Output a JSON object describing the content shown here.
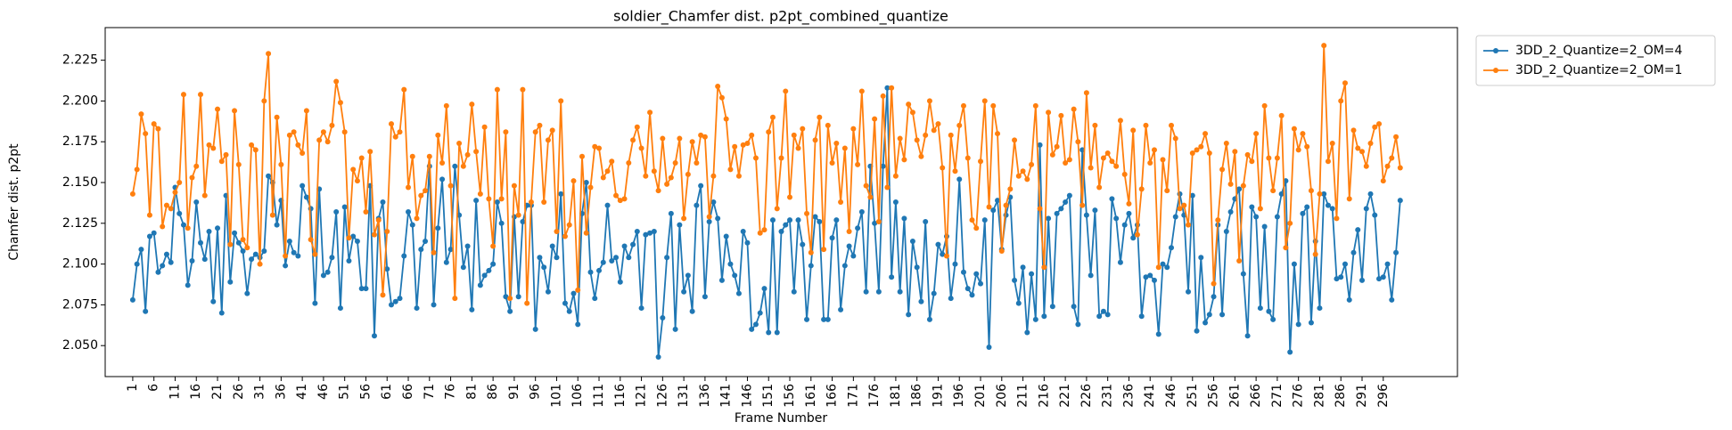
{
  "chart_data": {
    "type": "line",
    "title": "soldier_Chamfer dist. p2pt_combined_quantize",
    "xlabel": "Frame Number",
    "ylabel": "Chamfer dist. p2pt",
    "legend": "outside-upper-right",
    "xlim": [
      -5.5,
      313.5
    ],
    "ylim": [
      2.031,
      2.245
    ],
    "xticks": [
      1,
      6,
      11,
      16,
      21,
      26,
      31,
      36,
      41,
      46,
      51,
      56,
      61,
      66,
      71,
      76,
      81,
      86,
      91,
      96,
      101,
      106,
      111,
      116,
      121,
      126,
      131,
      136,
      141,
      146,
      151,
      156,
      161,
      166,
      171,
      176,
      181,
      186,
      191,
      196,
      201,
      206,
      211,
      216,
      221,
      226,
      231,
      236,
      241,
      246,
      251,
      256,
      261,
      266,
      271,
      276,
      281,
      286,
      291,
      296
    ],
    "yticks": [
      {
        "value": 2.05,
        "label": "2.050"
      },
      2.075,
      {
        "value": 2.1,
        "label": "2.100"
      },
      2.125,
      {
        "value": 2.15,
        "label": "2.150"
      },
      2.175,
      {
        "value": 2.2,
        "label": "2.200"
      },
      2.225
    ],
    "x": [
      1,
      2,
      3,
      4,
      5,
      6,
      7,
      8,
      9,
      10,
      11,
      12,
      13,
      14,
      15,
      16,
      17,
      18,
      19,
      20,
      21,
      22,
      23,
      24,
      25,
      26,
      27,
      28,
      29,
      30,
      31,
      32,
      33,
      34,
      35,
      36,
      37,
      38,
      39,
      40,
      41,
      42,
      43,
      44,
      45,
      46,
      47,
      48,
      49,
      50,
      51,
      52,
      53,
      54,
      55,
      56,
      57,
      58,
      59,
      60,
      61,
      62,
      63,
      64,
      65,
      66,
      67,
      68,
      69,
      70,
      71,
      72,
      73,
      74,
      75,
      76,
      77,
      78,
      79,
      80,
      81,
      82,
      83,
      84,
      85,
      86,
      87,
      88,
      89,
      90,
      91,
      92,
      93,
      94,
      95,
      96,
      97,
      98,
      99,
      100,
      101,
      102,
      103,
      104,
      105,
      106,
      107,
      108,
      109,
      110,
      111,
      112,
      113,
      114,
      115,
      116,
      117,
      118,
      119,
      120,
      121,
      122,
      123,
      124,
      125,
      126,
      127,
      128,
      129,
      130,
      131,
      132,
      133,
      134,
      135,
      136,
      137,
      138,
      139,
      140,
      141,
      142,
      143,
      144,
      145,
      146,
      147,
      148,
      149,
      150,
      151,
      152,
      153,
      154,
      155,
      156,
      157,
      158,
      159,
      160,
      161,
      162,
      163,
      164,
      165,
      166,
      167,
      168,
      169,
      170,
      171,
      172,
      173,
      174,
      175,
      176,
      177,
      178,
      179,
      180,
      181,
      182,
      183,
      184,
      185,
      186,
      187,
      188,
      189,
      190,
      191,
      192,
      193,
      194,
      195,
      196,
      197,
      198,
      199,
      200,
      201,
      202,
      203,
      204,
      205,
      206,
      207,
      208,
      209,
      210,
      211,
      212,
      213,
      214,
      215,
      216,
      217,
      218,
      219,
      220,
      221,
      222,
      223,
      224,
      225,
      226,
      227,
      228,
      229,
      230,
      231,
      232,
      233,
      234,
      235,
      236,
      237,
      238,
      239,
      240,
      241,
      242,
      243,
      244,
      245,
      246,
      247,
      248,
      249,
      250,
      251,
      252,
      253,
      254,
      255,
      256,
      257,
      258,
      259,
      260,
      261,
      262,
      263,
      264,
      265,
      266,
      267,
      268,
      269,
      270,
      271,
      272,
      273,
      274,
      275,
      276,
      277,
      278,
      279,
      280,
      281,
      282,
      283,
      284,
      285,
      286,
      287,
      288,
      289,
      290,
      291,
      292,
      293,
      294,
      295,
      296,
      297,
      298,
      299,
      300
    ],
    "series": [
      {
        "name": "3DD_2_Quantize=2_OM=4",
        "color": "#1f77b4",
        "values": [
          2.078,
          2.1,
          2.109,
          2.071,
          2.117,
          2.119,
          2.095,
          2.099,
          2.106,
          2.101,
          2.147,
          2.131,
          2.124,
          2.087,
          2.102,
          2.138,
          2.113,
          2.103,
          2.12,
          2.077,
          2.122,
          2.07,
          2.142,
          2.089,
          2.119,
          2.113,
          2.108,
          2.082,
          2.103,
          2.106,
          2.104,
          2.108,
          2.154,
          2.15,
          2.124,
          2.139,
          2.099,
          2.114,
          2.107,
          2.105,
          2.148,
          2.141,
          2.134,
          2.076,
          2.146,
          2.093,
          2.095,
          2.104,
          2.132,
          2.073,
          2.135,
          2.102,
          2.117,
          2.114,
          2.085,
          2.085,
          2.148,
          2.056,
          2.128,
          2.138,
          2.097,
          2.075,
          2.077,
          2.079,
          2.105,
          2.132,
          2.124,
          2.073,
          2.109,
          2.114,
          2.16,
          2.075,
          2.122,
          2.152,
          2.101,
          2.109,
          2.16,
          2.13,
          2.098,
          2.111,
          2.072,
          2.139,
          2.087,
          2.093,
          2.096,
          2.1,
          2.138,
          2.125,
          2.08,
          2.071,
          2.129,
          2.08,
          2.126,
          2.136,
          2.136,
          2.06,
          2.104,
          2.098,
          2.083,
          2.111,
          2.104,
          2.143,
          2.076,
          2.071,
          2.082,
          2.063,
          2.131,
          2.15,
          2.095,
          2.079,
          2.096,
          2.101,
          2.136,
          2.102,
          2.104,
          2.089,
          2.111,
          2.104,
          2.112,
          2.12,
          2.073,
          2.118,
          2.119,
          2.12,
          2.043,
          2.067,
          2.104,
          2.131,
          2.06,
          2.124,
          2.083,
          2.093,
          2.071,
          2.136,
          2.148,
          2.08,
          2.126,
          2.138,
          2.128,
          2.09,
          2.117,
          2.1,
          2.093,
          2.082,
          2.12,
          2.113,
          2.06,
          2.063,
          2.07,
          2.085,
          2.058,
          2.127,
          2.058,
          2.12,
          2.124,
          2.127,
          2.083,
          2.127,
          2.112,
          2.066,
          2.099,
          2.129,
          2.126,
          2.066,
          2.066,
          2.116,
          2.127,
          2.072,
          2.099,
          2.111,
          2.105,
          2.122,
          2.132,
          2.083,
          2.16,
          2.125,
          2.083,
          2.16,
          2.208,
          2.092,
          2.138,
          2.083,
          2.128,
          2.069,
          2.114,
          2.098,
          2.077,
          2.126,
          2.066,
          2.082,
          2.112,
          2.106,
          2.117,
          2.079,
          2.1,
          2.152,
          2.095,
          2.085,
          2.081,
          2.094,
          2.088,
          2.127,
          2.049,
          2.133,
          2.139,
          2.109,
          2.13,
          2.141,
          2.09,
          2.076,
          2.098,
          2.058,
          2.094,
          2.066,
          2.173,
          2.068,
          2.128,
          2.074,
          2.131,
          2.134,
          2.138,
          2.142,
          2.074,
          2.063,
          2.17,
          2.13,
          2.093,
          2.133,
          2.068,
          2.071,
          2.069,
          2.14,
          2.128,
          2.101,
          2.124,
          2.131,
          2.116,
          2.124,
          2.068,
          2.092,
          2.093,
          2.09,
          2.057,
          2.1,
          2.098,
          2.11,
          2.129,
          2.143,
          2.13,
          2.083,
          2.142,
          2.059,
          2.104,
          2.064,
          2.069,
          2.08,
          2.124,
          2.069,
          2.12,
          2.132,
          2.14,
          2.146,
          2.094,
          2.056,
          2.135,
          2.129,
          2.073,
          2.123,
          2.071,
          2.066,
          2.129,
          2.143,
          2.151,
          2.046,
          2.1,
          2.063,
          2.131,
          2.135,
          2.064,
          2.114,
          2.073,
          2.143,
          2.136,
          2.134,
          2.091,
          2.092,
          2.1,
          2.078,
          2.107,
          2.121,
          2.09,
          2.134,
          2.143,
          2.13,
          2.091,
          2.092,
          2.1,
          2.078,
          2.107,
          2.139
        ]
      },
      {
        "name": "3DD_2_Quantize=2_OM=1",
        "color": "#ff7f0e",
        "values": [
          2.143,
          2.158,
          2.192,
          2.18,
          2.13,
          2.186,
          2.183,
          2.123,
          2.136,
          2.134,
          2.144,
          2.15,
          2.204,
          2.122,
          2.153,
          2.16,
          2.204,
          2.142,
          2.173,
          2.171,
          2.195,
          2.163,
          2.167,
          2.112,
          2.194,
          2.161,
          2.115,
          2.11,
          2.173,
          2.17,
          2.1,
          2.2,
          2.229,
          2.13,
          2.19,
          2.161,
          2.105,
          2.179,
          2.181,
          2.173,
          2.168,
          2.194,
          2.115,
          2.106,
          2.176,
          2.181,
          2.175,
          2.185,
          2.212,
          2.199,
          2.181,
          2.116,
          2.158,
          2.151,
          2.165,
          2.132,
          2.169,
          2.118,
          2.127,
          2.081,
          2.12,
          2.186,
          2.178,
          2.181,
          2.207,
          2.147,
          2.166,
          2.128,
          2.142,
          2.145,
          2.166,
          2.107,
          2.179,
          2.162,
          2.197,
          2.148,
          2.079,
          2.174,
          2.16,
          2.167,
          2.198,
          2.169,
          2.143,
          2.184,
          2.14,
          2.111,
          2.207,
          2.14,
          2.181,
          2.079,
          2.148,
          2.13,
          2.207,
          2.076,
          2.138,
          2.181,
          2.185,
          2.138,
          2.176,
          2.182,
          2.12,
          2.2,
          2.117,
          2.124,
          2.151,
          2.084,
          2.166,
          2.119,
          2.147,
          2.172,
          2.171,
          2.153,
          2.157,
          2.163,
          2.142,
          2.139,
          2.14,
          2.162,
          2.176,
          2.184,
          2.171,
          2.154,
          2.193,
          2.157,
          2.145,
          2.177,
          2.149,
          2.153,
          2.162,
          2.177,
          2.128,
          2.155,
          2.175,
          2.162,
          2.179,
          2.178,
          2.129,
          2.154,
          2.209,
          2.202,
          2.189,
          2.158,
          2.172,
          2.154,
          2.173,
          2.174,
          2.179,
          2.165,
          2.119,
          2.121,
          2.181,
          2.19,
          2.134,
          2.165,
          2.206,
          2.141,
          2.179,
          2.171,
          2.183,
          2.131,
          2.107,
          2.176,
          2.19,
          2.109,
          2.185,
          2.162,
          2.174,
          2.138,
          2.171,
          2.12,
          2.183,
          2.161,
          2.206,
          2.148,
          2.141,
          2.189,
          2.126,
          2.203,
          2.147,
          2.208,
          2.154,
          2.177,
          2.164,
          2.198,
          2.193,
          2.176,
          2.166,
          2.179,
          2.2,
          2.182,
          2.186,
          2.159,
          2.105,
          2.179,
          2.157,
          2.185,
          2.197,
          2.165,
          2.127,
          2.122,
          2.163,
          2.2,
          2.135,
          2.197,
          2.18,
          2.108,
          2.136,
          2.146,
          2.176,
          2.154,
          2.157,
          2.152,
          2.161,
          2.197,
          2.134,
          2.098,
          2.193,
          2.167,
          2.172,
          2.191,
          2.162,
          2.164,
          2.195,
          2.175,
          2.136,
          2.205,
          2.159,
          2.185,
          2.147,
          2.165,
          2.168,
          2.163,
          2.16,
          2.188,
          2.155,
          2.137,
          2.182,
          2.118,
          2.146,
          2.185,
          2.162,
          2.17,
          2.098,
          2.164,
          2.145,
          2.185,
          2.177,
          2.134,
          2.136,
          2.124,
          2.168,
          2.17,
          2.172,
          2.18,
          2.168,
          2.088,
          2.127,
          2.158,
          2.174,
          2.149,
          2.169,
          2.102,
          2.148,
          2.167,
          2.163,
          2.18,
          2.134,
          2.197,
          2.165,
          2.145,
          2.165,
          2.191,
          2.11,
          2.125,
          2.183,
          2.17,
          2.18,
          2.172,
          2.145,
          2.106,
          2.143,
          2.234,
          2.163,
          2.174,
          2.128,
          2.2,
          2.211,
          2.14,
          2.182,
          2.171,
          2.169,
          2.16,
          2.174,
          2.184,
          2.186,
          2.151,
          2.16,
          2.165,
          2.178,
          2.159
        ]
      }
    ]
  }
}
